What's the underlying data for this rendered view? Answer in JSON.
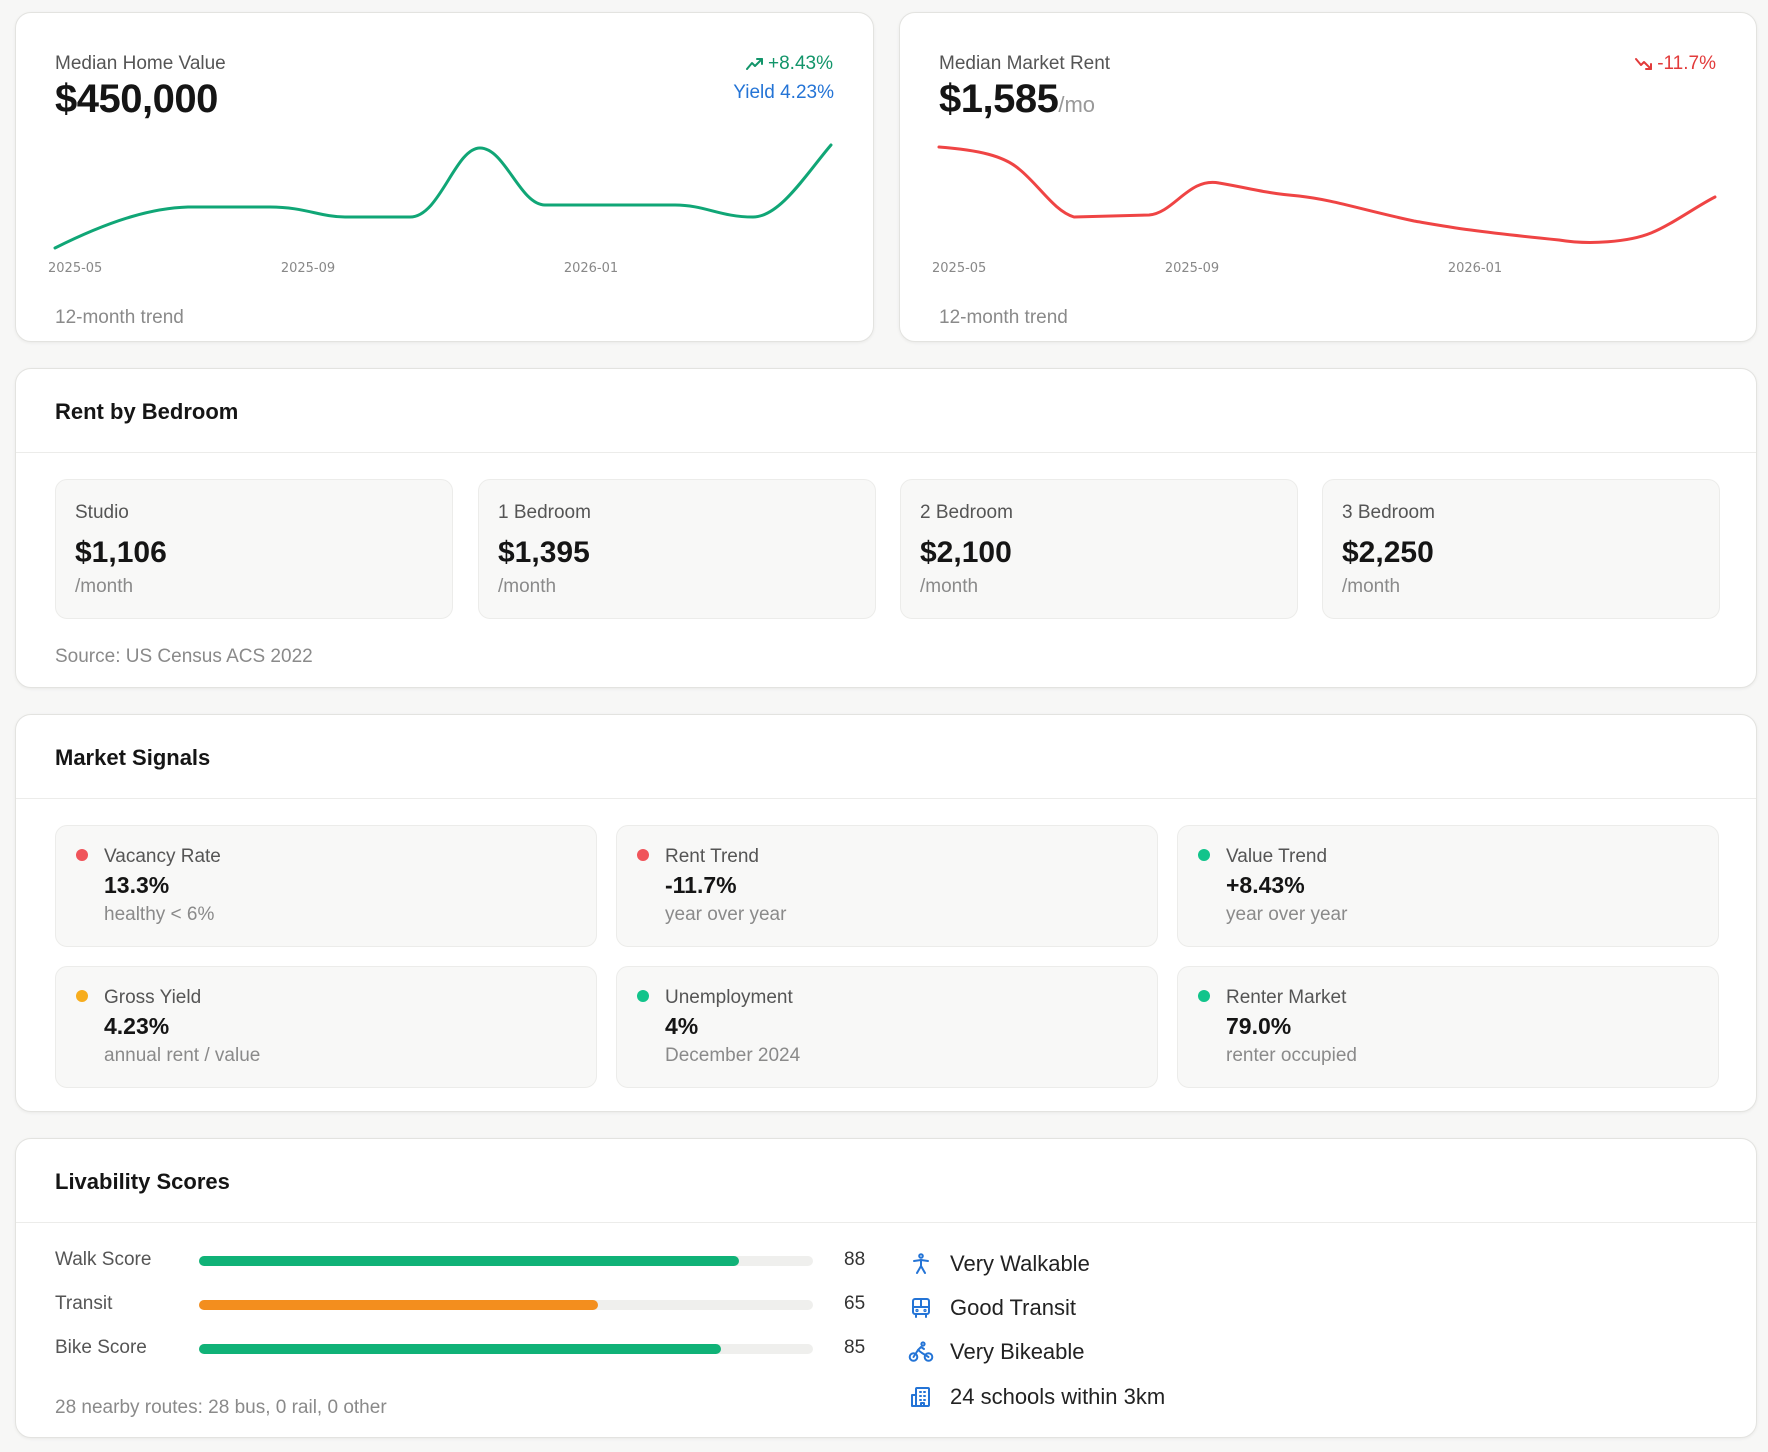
{
  "home_value": {
    "label": "Median Home Value",
    "value": "$450,000",
    "change": "+8.43%",
    "yield": "Yield 4.23%",
    "footer": "12-month trend",
    "color": "#10a676",
    "ticks": [
      "2025-05",
      "2025-09",
      "2026-01"
    ]
  },
  "market_rent": {
    "label": "Median Market Rent",
    "value": "$1,585",
    "unit": "/mo",
    "change": "-11.7%",
    "footer": "12-month trend",
    "color": "#ef4444",
    "ticks": [
      "2025-05",
      "2025-09",
      "2026-01"
    ]
  },
  "rent_by_bedroom": {
    "title": "Rent by Bedroom",
    "source": "Source: US Census ACS 2022",
    "items": [
      {
        "name": "Studio",
        "value": "$1,106",
        "unit": "/month"
      },
      {
        "name": "1 Bedroom",
        "value": "$1,395",
        "unit": "/month"
      },
      {
        "name": "2 Bedroom",
        "value": "$2,100",
        "unit": "/month"
      },
      {
        "name": "3 Bedroom",
        "value": "$2,250",
        "unit": "/month"
      }
    ]
  },
  "market_signals": {
    "title": "Market Signals",
    "items": [
      {
        "label": "Vacancy Rate",
        "value": "13.3%",
        "sub": "healthy < 6%",
        "color": "#f0545a"
      },
      {
        "label": "Rent Trend",
        "value": "-11.7%",
        "sub": "year over year",
        "color": "#f0545a"
      },
      {
        "label": "Value Trend",
        "value": "+8.43%",
        "sub": "year over year",
        "color": "#12c48b"
      },
      {
        "label": "Gross Yield",
        "value": "4.23%",
        "sub": "annual rent / value",
        "color": "#f7ad1e"
      },
      {
        "label": "Unemployment",
        "value": "4%",
        "sub": "December 2024",
        "color": "#12c48b"
      },
      {
        "label": "Renter Market",
        "value": "79.0%",
        "sub": "renter occupied",
        "color": "#12c48b"
      }
    ]
  },
  "livability": {
    "title": "Livability Scores",
    "scores": [
      {
        "label": "Walk Score",
        "value": "88",
        "fraction": 0.88,
        "color": "#10b277"
      },
      {
        "label": "Transit",
        "value": "65",
        "fraction": 0.65,
        "color": "#f38e1e"
      },
      {
        "label": "Bike Score",
        "value": "85",
        "fraction": 0.85,
        "color": "#10b277"
      }
    ],
    "routes_note": "28 nearby routes: 28 bus, 0 rail, 0 other",
    "highlights": [
      {
        "icon": "walking-person-icon",
        "text": "Very Walkable"
      },
      {
        "icon": "bus-icon",
        "text": "Good Transit"
      },
      {
        "icon": "bicycle-icon",
        "text": "Very Bikeable"
      },
      {
        "icon": "school-building-icon",
        "text": "24 schools within 3km"
      }
    ],
    "icon_color": "#2474d6"
  }
}
